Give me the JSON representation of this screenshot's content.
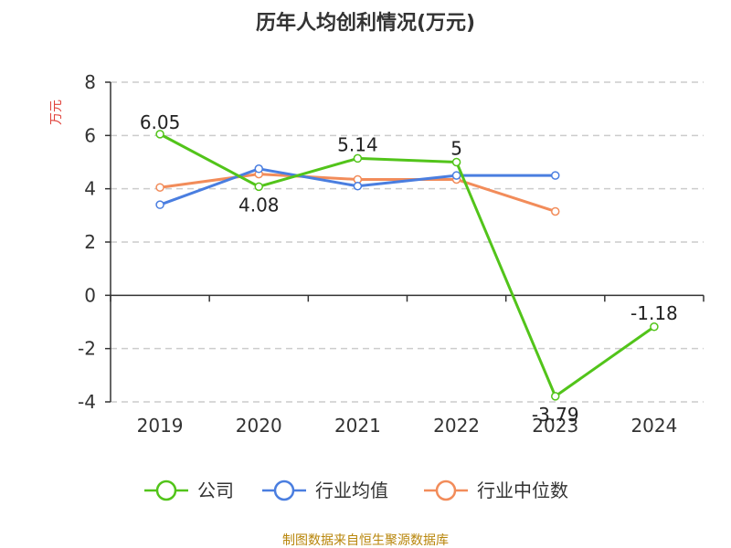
{
  "chart_data": {
    "type": "line",
    "title": "历年人均创利情况(万元)",
    "ylabel": "万元",
    "xlabel": "",
    "categories": [
      "2019",
      "2020",
      "2021",
      "2022",
      "2023",
      "2024"
    ],
    "ylim": [
      -4,
      8
    ],
    "yticks": [
      -4,
      -2,
      0,
      2,
      4,
      6,
      8
    ],
    "grid": true,
    "legend_position": "bottom",
    "series": [
      {
        "name": "公司",
        "color": "#52c41a",
        "values": [
          6.05,
          4.08,
          5.14,
          5,
          -3.79,
          -1.18
        ],
        "labels": [
          "6.05",
          "4.08",
          "5.14",
          "5",
          "-3.79",
          "-1.18"
        ]
      },
      {
        "name": "行业均值",
        "color": "#4a7ee0",
        "values": [
          3.4,
          4.75,
          4.1,
          4.5,
          4.5,
          null
        ]
      },
      {
        "name": "行业中位数",
        "color": "#f28c5a",
        "values": [
          4.05,
          4.55,
          4.35,
          4.35,
          3.15,
          null
        ]
      }
    ]
  },
  "source": "制图数据来自恒生聚源数据库"
}
